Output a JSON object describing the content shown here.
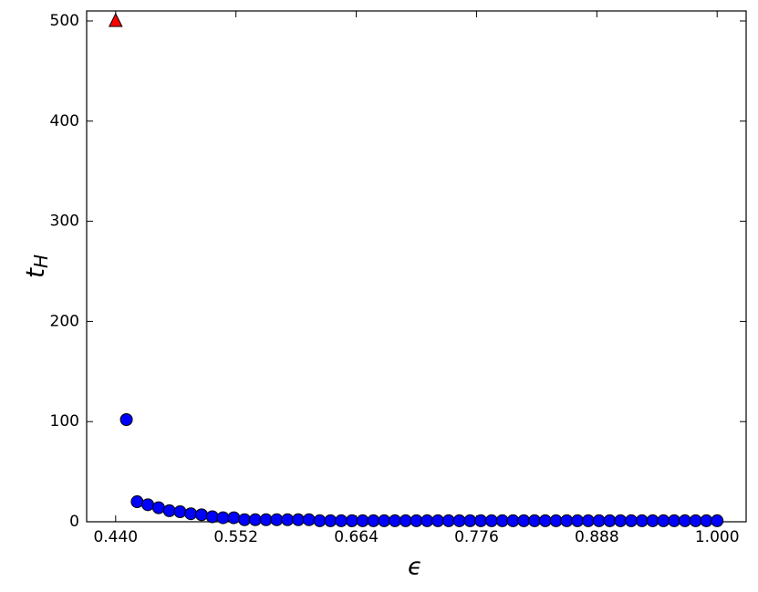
{
  "chart_data": {
    "type": "scatter",
    "xlabel": "ϵ",
    "ylabel": "t",
    "ylabel_subscript": "H",
    "xlim": [
      0.413,
      1.027
    ],
    "ylim": [
      0,
      510
    ],
    "xticks": [
      {
        "value": 0.44,
        "label": "0.440"
      },
      {
        "value": 0.552,
        "label": "0.552"
      },
      {
        "value": 0.664,
        "label": "0.664"
      },
      {
        "value": 0.776,
        "label": "0.776"
      },
      {
        "value": 0.888,
        "label": "0.888"
      },
      {
        "value": 1.0,
        "label": "1.000"
      }
    ],
    "yticks": [
      0,
      100,
      200,
      300,
      400,
      500
    ],
    "series": [
      {
        "color": "#ff0000",
        "marker": "triangle",
        "x": [
          0.44
        ],
        "values": [
          500
        ]
      },
      {
        "color": "#0000ff",
        "marker": "circle",
        "x": [
          0.45,
          0.46,
          0.47,
          0.48,
          0.49,
          0.5,
          0.51,
          0.52,
          0.53,
          0.54,
          0.55,
          0.56,
          0.57,
          0.58,
          0.59,
          0.6,
          0.61,
          0.62,
          0.63,
          0.64,
          0.65,
          0.66,
          0.67,
          0.68,
          0.69,
          0.7,
          0.71,
          0.72,
          0.73,
          0.74,
          0.75,
          0.76,
          0.77,
          0.78,
          0.79,
          0.8,
          0.81,
          0.82,
          0.83,
          0.84,
          0.85,
          0.86,
          0.87,
          0.88,
          0.89,
          0.9,
          0.91,
          0.92,
          0.93,
          0.94,
          0.95,
          0.96,
          0.97,
          0.98,
          0.99,
          1.0
        ],
        "values": [
          102,
          20,
          17,
          14,
          11,
          10,
          8,
          7,
          5,
          4,
          4,
          2,
          2,
          2,
          2,
          2,
          2,
          2,
          1,
          1,
          1,
          1,
          1,
          1,
          1,
          1,
          1,
          1,
          1,
          1,
          1,
          1,
          1,
          1,
          1,
          1,
          1,
          1,
          1,
          1,
          1,
          1,
          1,
          1,
          1,
          1,
          1,
          1,
          1,
          1,
          1,
          1,
          1,
          1,
          1,
          1
        ]
      }
    ]
  }
}
